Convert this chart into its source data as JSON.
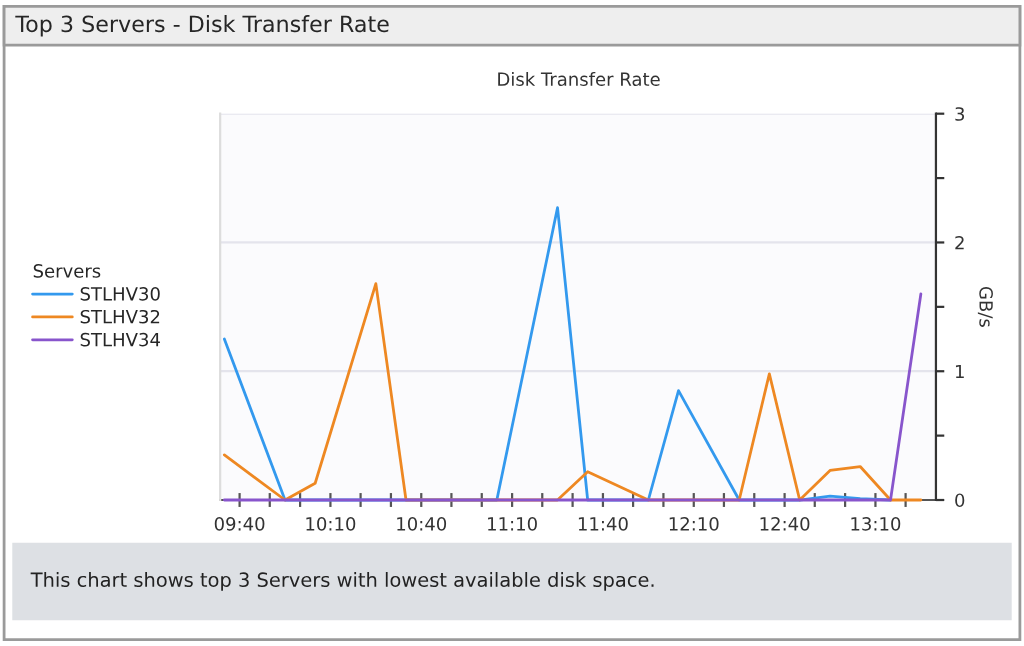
{
  "chart_data": {
    "type": "line",
    "title": "Top 3 Servers - Disk Transfer Rate",
    "subtitle": "Disk Transfer Rate",
    "ylabel": "GB/s",
    "legend_title": "Servers",
    "legend": "left",
    "grid": "y",
    "marker": "none",
    "line_style": "solid",
    "annotations": [
      "This chart shows top 3 Servers with lowest available disk space."
    ],
    "xlim": [
      9.56,
      13.5
    ],
    "ylim": [
      0,
      3
    ],
    "xticks": [
      {
        "value": 9.667,
        "label": "09:40"
      },
      {
        "value": 9.833,
        "label": null
      },
      {
        "value": 10,
        "label": null
      },
      {
        "value": 10.167,
        "label": "10:10"
      },
      {
        "value": 10.333,
        "label": null
      },
      {
        "value": 10.5,
        "label": null
      },
      {
        "value": 10.667,
        "label": "10:40"
      },
      {
        "value": 10.833,
        "label": null
      },
      {
        "value": 11,
        "label": null
      },
      {
        "value": 11.167,
        "label": "11:10"
      },
      {
        "value": 11.333,
        "label": null
      },
      {
        "value": 11.5,
        "label": null
      },
      {
        "value": 11.667,
        "label": "11:40"
      },
      {
        "value": 11.833,
        "label": null
      },
      {
        "value": 12,
        "label": null
      },
      {
        "value": 12.167,
        "label": "12:10"
      },
      {
        "value": 12.333,
        "label": null
      },
      {
        "value": 12.5,
        "label": null
      },
      {
        "value": 12.667,
        "label": "12:40"
      },
      {
        "value": 12.833,
        "label": null
      },
      {
        "value": 13,
        "label": null
      },
      {
        "value": 13.167,
        "label": "13:10"
      },
      {
        "value": 13.333,
        "label": null
      }
    ],
    "yticks": [
      0,
      {
        "value": 0.5,
        "label": null
      },
      1,
      {
        "value": 1.5,
        "label": null
      },
      2,
      {
        "value": 2.5,
        "label": null
      },
      3
    ],
    "series": [
      {
        "name": "STLHV30",
        "color": "#3399ee",
        "x": [
          9.583,
          9.917,
          11.083,
          11.417,
          11.583,
          11.917,
          12.083,
          12.417,
          12.75,
          12.917,
          13.083,
          13.25
        ],
        "values": [
          1.25,
          0,
          0,
          2.27,
          0,
          0,
          0.85,
          0,
          0,
          0.03,
          0.01,
          0
        ]
      },
      {
        "name": "STLHV32",
        "color": "#ee8822",
        "x": [
          9.583,
          9.917,
          10.083,
          10.417,
          10.583,
          11.417,
          11.583,
          11.917,
          12.417,
          12.583,
          12.75,
          12.917,
          13.083,
          13.25,
          13.417
        ],
        "values": [
          0.35,
          0,
          0.13,
          1.68,
          0,
          0,
          0.22,
          0,
          0,
          0.98,
          0,
          0.23,
          0.26,
          0,
          0
        ]
      },
      {
        "name": "STLHV34",
        "color": "#8855cc",
        "x": [
          9.583,
          13.25,
          13.417
        ],
        "values": [
          0,
          0,
          1.6
        ]
      }
    ]
  }
}
